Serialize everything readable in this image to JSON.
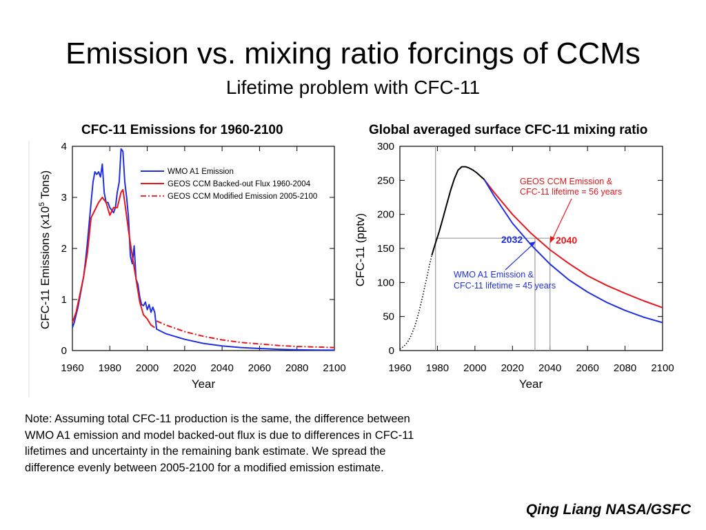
{
  "slide": {
    "title": "Emission vs. mixing ratio forcings of CCMs",
    "subtitle": "Lifetime problem with CFC-11",
    "note": "Note: Assuming total CFC-11 production is the same, the difference between WMO A1 emission and model backed-out flux is due to differences in CFC-11 lifetimes and uncertainty in the remaining bank estimate.  We spread the difference evenly between 2005-2100 for a modified emission estimate.",
    "credit": "Qing Liang NASA/GSFC"
  },
  "chart_data": [
    {
      "type": "line",
      "title": "CFC-11 Emissions for 1960-2100",
      "xlabel": "Year",
      "ylabel": "CFC-11 Emissions (x10",
      "ylabel_sup": "5",
      "ylabel_end": " Tons)",
      "xlim": [
        1960,
        2100
      ],
      "ylim": [
        0,
        4
      ],
      "xticks": [
        1960,
        1980,
        2000,
        2020,
        2040,
        2060,
        2080,
        2100
      ],
      "yticks": [
        0,
        1,
        2,
        3,
        4
      ],
      "legend_position": "top-right",
      "series": [
        {
          "name": "WMO A1 Emission",
          "color": "#1f2fe0",
          "style": "solid",
          "x": [
            1960,
            1961,
            1962,
            1963,
            1964,
            1965,
            1966,
            1967,
            1968,
            1969,
            1970,
            1971,
            1972,
            1973,
            1974,
            1975,
            1976,
            1977,
            1978,
            1979,
            1980,
            1981,
            1982,
            1983,
            1984,
            1985,
            1986,
            1987,
            1988,
            1989,
            1990,
            1991,
            1992,
            1993,
            1994,
            1995,
            1996,
            1997,
            1998,
            1999,
            2000,
            2001,
            2002,
            2003,
            2004,
            2005,
            2010,
            2020,
            2030,
            2040,
            2050,
            2060,
            2070,
            2080,
            2090,
            2100
          ],
          "y": [
            0.45,
            0.55,
            0.7,
            0.85,
            1.05,
            1.25,
            1.45,
            1.75,
            2.1,
            2.5,
            2.9,
            3.3,
            3.5,
            3.45,
            3.5,
            3.4,
            3.65,
            3.1,
            2.9,
            2.9,
            2.8,
            2.75,
            2.7,
            2.8,
            3.1,
            3.3,
            3.95,
            3.9,
            3.3,
            3.0,
            2.6,
            1.85,
            1.7,
            2.05,
            1.4,
            1.3,
            1.05,
            0.9,
            0.88,
            0.95,
            0.8,
            0.9,
            0.75,
            0.85,
            0.75,
            0.42,
            0.33,
            0.22,
            0.14,
            0.09,
            0.06,
            0.04,
            0.025,
            0.015,
            0.01,
            0.008
          ]
        },
        {
          "name": "GEOS CCM Backed-out Flux 1960-2004",
          "color": "#e8151b",
          "style": "solid",
          "x": [
            1960,
            1962,
            1964,
            1966,
            1968,
            1970,
            1972,
            1974,
            1976,
            1978,
            1980,
            1982,
            1984,
            1986,
            1987,
            1988,
            1990,
            1992,
            1994,
            1996,
            1998,
            2000,
            2002,
            2004
          ],
          "y": [
            0.55,
            0.75,
            1.1,
            1.45,
            1.9,
            2.6,
            2.75,
            2.9,
            3.0,
            2.9,
            2.65,
            2.8,
            2.8,
            3.1,
            3.15,
            2.9,
            2.35,
            1.85,
            1.4,
            0.95,
            0.7,
            0.62,
            0.5,
            0.45
          ]
        },
        {
          "name": "GEOS CCM Modified Emission 2005-2100",
          "color": "#e8151b",
          "style": "dashdot",
          "x": [
            2005,
            2010,
            2020,
            2030,
            2040,
            2050,
            2060,
            2070,
            2080,
            2090,
            2100
          ],
          "y": [
            0.58,
            0.5,
            0.37,
            0.28,
            0.21,
            0.16,
            0.13,
            0.1,
            0.08,
            0.07,
            0.06
          ]
        }
      ]
    },
    {
      "type": "line",
      "title": "Global averaged surface CFC-11 mixing ratio",
      "xlabel": "Year",
      "ylabel": "CFC-11 (pptv)",
      "xlim": [
        1960,
        2100
      ],
      "ylim": [
        0,
        300
      ],
      "xticks": [
        1960,
        1980,
        2000,
        2020,
        2040,
        2060,
        2080,
        2100
      ],
      "yticks": [
        0,
        50,
        100,
        150,
        200,
        250,
        300
      ],
      "series": [
        {
          "color": "#000000",
          "style": "dotted",
          "x": [
            1960,
            1962,
            1964,
            1966,
            1968,
            1970,
            1972,
            1974,
            1976,
            1977
          ],
          "y": [
            2,
            6,
            12,
            22,
            36,
            55,
            78,
            103,
            128,
            140
          ]
        },
        {
          "color": "#000000",
          "style": "solid",
          "x": [
            1977,
            1979,
            1981,
            1983,
            1985,
            1987,
            1989,
            1991,
            1993,
            1995,
            1997,
            1999,
            2001,
            2003,
            2005
          ],
          "y": [
            140,
            158,
            175,
            195,
            215,
            235,
            252,
            265,
            270,
            270,
            268,
            265,
            261,
            256,
            251
          ]
        },
        {
          "color": "#e8151b",
          "style": "solid",
          "x": [
            2005,
            2010,
            2020,
            2030,
            2040,
            2050,
            2060,
            2070,
            2080,
            2090,
            2100
          ],
          "y": [
            251,
            233,
            200,
            172,
            148,
            128,
            110,
            96,
            84,
            73,
            63
          ]
        },
        {
          "color": "#1f2fe0",
          "style": "solid",
          "x": [
            2005,
            2010,
            2020,
            2030,
            2040,
            2050,
            2060,
            2070,
            2080,
            2090,
            2100
          ],
          "y": [
            251,
            228,
            187,
            155,
            127,
            104,
            86,
            71,
            59,
            49,
            41
          ]
        }
      ],
      "reference_lines": {
        "vertical_years": [
          1979,
          2032,
          2040
        ],
        "horizontal_value": 165
      },
      "annotations": [
        {
          "line1": "GEOS CCM Emission &",
          "line2": "CFC-11 lifetime = 56 years",
          "color": "#e8151b"
        },
        {
          "line1": "WMO A1 Emission &",
          "line2": "CFC-11 lifetime = 45 years",
          "color": "#1f2fe0"
        },
        {
          "label": "2032",
          "color": "#1f2fe0"
        },
        {
          "label": "2040",
          "color": "#e8151b"
        }
      ]
    }
  ]
}
